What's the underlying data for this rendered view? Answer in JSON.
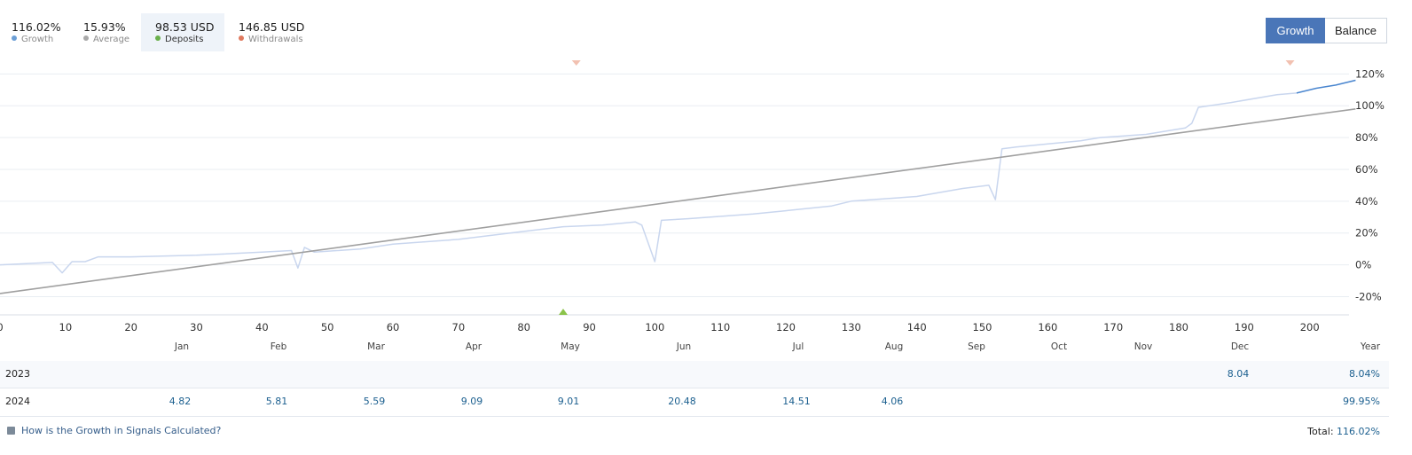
{
  "stats": [
    {
      "value": "116.02%",
      "label": "Growth",
      "color": "#6c9fd6",
      "active": false
    },
    {
      "value": "15.93%",
      "label": "Average",
      "color": "#a9a9a9",
      "active": false
    },
    {
      "value": "98.53 USD",
      "label": "Deposits",
      "color": "#6ab04c",
      "active": true
    },
    {
      "value": "146.85 USD",
      "label": "Withdrawals",
      "color": "#e07a5f",
      "active": false
    }
  ],
  "toggle": {
    "growth_label": "Growth",
    "balance_label": "Balance",
    "selected": "Growth"
  },
  "chart_data": {
    "type": "line",
    "x_ticks": [
      0,
      10,
      20,
      30,
      40,
      50,
      60,
      70,
      80,
      90,
      100,
      110,
      120,
      130,
      140,
      150,
      160,
      170,
      180,
      190,
      200
    ],
    "y_ticks": [
      "120%",
      "100%",
      "80%",
      "60%",
      "40%",
      "20%",
      "0%",
      "-20%"
    ],
    "y_tick_values": [
      120,
      100,
      80,
      60,
      40,
      20,
      0,
      -20
    ],
    "xlim": [
      0,
      206
    ],
    "ylim": [
      -32,
      128
    ],
    "grid": true,
    "series": [
      {
        "color": "#c9d6ee",
        "points": [
          [
            0,
            0
          ],
          [
            8,
            1.5
          ],
          [
            9.5,
            -5
          ],
          [
            11,
            2
          ],
          [
            13,
            2
          ],
          [
            15,
            5
          ],
          [
            20,
            5
          ],
          [
            30,
            6
          ],
          [
            40,
            8
          ],
          [
            44.5,
            9
          ],
          [
            45.5,
            -2
          ],
          [
            46.5,
            11
          ],
          [
            48,
            8
          ],
          [
            55,
            10
          ],
          [
            60,
            13
          ],
          [
            70,
            16
          ],
          [
            80,
            21
          ],
          [
            86,
            24
          ],
          [
            92,
            25
          ],
          [
            97,
            27
          ],
          [
            98,
            25
          ],
          [
            100,
            2
          ],
          [
            101,
            28
          ],
          [
            105,
            29
          ],
          [
            115,
            32
          ],
          [
            120,
            34
          ],
          [
            127,
            37
          ],
          [
            130,
            40
          ],
          [
            140,
            43
          ],
          [
            147,
            48
          ],
          [
            151,
            50
          ],
          [
            152,
            41
          ],
          [
            153,
            73
          ],
          [
            155,
            74
          ],
          [
            160,
            76
          ],
          [
            165,
            78
          ],
          [
            168,
            80
          ],
          [
            175,
            82
          ],
          [
            178,
            84
          ],
          [
            181,
            86
          ],
          [
            182,
            89
          ],
          [
            183,
            99
          ],
          [
            188,
            102
          ],
          [
            195,
            107
          ],
          [
            198,
            108
          ]
        ]
      },
      {
        "color": "#4a86cf",
        "points": [
          [
            198,
            108
          ],
          [
            201,
            111
          ],
          [
            204,
            113
          ],
          [
            207,
            116
          ]
        ]
      },
      {
        "color": "#a0a0a0",
        "points": [
          [
            0,
            -18
          ],
          [
            207,
            98
          ]
        ]
      }
    ],
    "markers": [
      {
        "type": "withdrawal",
        "x": 88,
        "color": "#f2c1b1"
      },
      {
        "type": "withdrawal",
        "x": 197,
        "color": "#f2c1b1"
      },
      {
        "type": "deposit",
        "x": 86,
        "color": "#8bc34a"
      }
    ]
  },
  "table": {
    "months": [
      "Jan",
      "Feb",
      "Mar",
      "Apr",
      "May",
      "Jun",
      "Jul",
      "Aug",
      "Sep",
      "Oct",
      "Nov",
      "Dec",
      "Year"
    ],
    "rows": [
      {
        "year": "2023",
        "values": [
          "",
          "",
          "",
          "",
          "",
          "",
          "",
          "",
          "",
          "",
          "",
          "8.04"
        ],
        "year_total": "8.04%"
      },
      {
        "year": "2024",
        "values": [
          "4.82",
          "5.81",
          "5.59",
          "9.09",
          "9.01",
          "20.48",
          "14.51",
          "4.06",
          "",
          "",
          "",
          ""
        ],
        "year_total": "99.95%"
      }
    ]
  },
  "footer": {
    "link_text": "How is the Growth in Signals Calculated?",
    "total_label": "Total:",
    "total_value": "116.02%"
  }
}
